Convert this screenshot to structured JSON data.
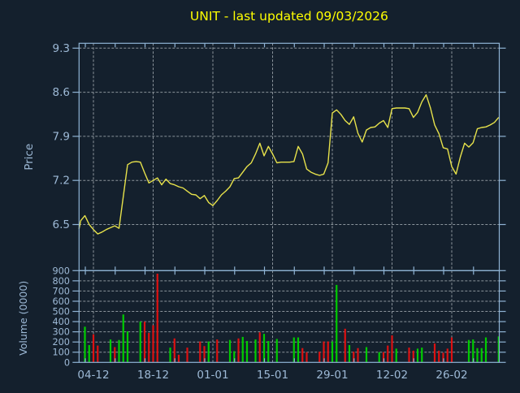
{
  "window": {
    "background": "#14202d"
  },
  "title": {
    "text": "UNIT - last updated 09/03/2026",
    "color": "#ffff00"
  },
  "axes": {
    "frame_color": "#8fb3d4",
    "grid_color": "#8b949c",
    "label_color": "#9db9d6",
    "price_axis_label": "Price",
    "volume_axis_label": "Volume (0000)",
    "x_tick_labels": [
      "04-12",
      "18-12",
      "01-01",
      "15-01",
      "29-01",
      "12-02",
      "26-02"
    ],
    "x_tick_days": [
      4,
      18,
      32,
      46,
      60,
      74,
      88
    ],
    "price_ticks": [
      9.3,
      8.6,
      7.9,
      7.2,
      6.5
    ],
    "volume_ticks": [
      900,
      800,
      700,
      600,
      500,
      400,
      300,
      200,
      100,
      0
    ]
  },
  "chart_data": [
    {
      "type": "line",
      "panel": "price",
      "title": "UNIT - last updated 09/03/2026",
      "ylabel": "Price",
      "ylim": [
        5.8,
        9.4
      ],
      "yticks": [
        6.5,
        7.2,
        7.9,
        8.6,
        9.3
      ],
      "xlabel": "",
      "xtick_labels": [
        "04-12",
        "18-12",
        "01-01",
        "15-01",
        "29-01",
        "12-02",
        "26-02"
      ],
      "grid": true,
      "line_color": "#e7e24b",
      "points": [
        [
          0,
          6.43
        ],
        [
          1,
          6.56
        ],
        [
          2,
          6.64
        ],
        [
          3,
          6.5
        ],
        [
          4,
          6.42
        ],
        [
          5,
          6.35
        ],
        [
          6,
          6.38
        ],
        [
          7,
          6.42
        ],
        [
          8,
          6.45
        ],
        [
          9,
          6.48
        ],
        [
          10,
          6.44
        ],
        [
          11,
          6.95
        ],
        [
          12,
          7.45
        ],
        [
          13,
          7.49
        ],
        [
          14,
          7.5
        ],
        [
          15,
          7.49
        ],
        [
          16,
          7.32
        ],
        [
          17,
          7.16
        ],
        [
          18,
          7.2
        ],
        [
          19,
          7.24
        ],
        [
          20,
          7.13
        ],
        [
          21,
          7.22
        ],
        [
          22,
          7.15
        ],
        [
          23,
          7.13
        ],
        [
          24,
          7.1
        ],
        [
          25,
          7.08
        ],
        [
          26,
          7.03
        ],
        [
          27,
          6.98
        ],
        [
          28,
          6.97
        ],
        [
          29,
          6.91
        ],
        [
          30,
          6.96
        ],
        [
          31,
          6.85
        ],
        [
          32,
          6.8
        ],
        [
          33,
          6.88
        ],
        [
          34,
          6.97
        ],
        [
          35,
          7.03
        ],
        [
          36,
          7.1
        ],
        [
          37,
          7.23
        ],
        [
          38,
          7.24
        ],
        [
          39,
          7.33
        ],
        [
          40,
          7.42
        ],
        [
          41,
          7.48
        ],
        [
          42,
          7.62
        ],
        [
          43,
          7.79
        ],
        [
          44,
          7.59
        ],
        [
          45,
          7.74
        ],
        [
          46,
          7.62
        ],
        [
          47,
          7.48
        ],
        [
          48,
          7.49
        ],
        [
          49,
          7.49
        ],
        [
          50,
          7.49
        ],
        [
          51,
          7.5
        ],
        [
          52,
          7.74
        ],
        [
          53,
          7.62
        ],
        [
          54,
          7.38
        ],
        [
          55,
          7.33
        ],
        [
          56,
          7.3
        ],
        [
          57,
          7.28
        ],
        [
          58,
          7.3
        ],
        [
          59,
          7.48
        ],
        [
          60,
          8.27
        ],
        [
          61,
          8.32
        ],
        [
          62,
          8.25
        ],
        [
          63,
          8.15
        ],
        [
          64,
          8.09
        ],
        [
          65,
          8.21
        ],
        [
          66,
          7.95
        ],
        [
          67,
          7.81
        ],
        [
          68,
          8.0
        ],
        [
          69,
          8.04
        ],
        [
          70,
          8.05
        ],
        [
          71,
          8.11
        ],
        [
          72,
          8.15
        ],
        [
          73,
          8.04
        ],
        [
          74,
          8.34
        ],
        [
          75,
          8.35
        ],
        [
          76,
          8.35
        ],
        [
          77,
          8.35
        ],
        [
          78,
          8.34
        ],
        [
          79,
          8.2
        ],
        [
          80,
          8.28
        ],
        [
          81,
          8.45
        ],
        [
          82,
          8.56
        ],
        [
          83,
          8.35
        ],
        [
          84,
          8.08
        ],
        [
          85,
          7.94
        ],
        [
          86,
          7.72
        ],
        [
          87,
          7.7
        ],
        [
          88,
          7.42
        ],
        [
          89,
          7.3
        ],
        [
          90,
          7.57
        ],
        [
          91,
          7.79
        ],
        [
          92,
          7.73
        ],
        [
          93,
          7.8
        ],
        [
          94,
          8.02
        ],
        [
          95,
          8.04
        ],
        [
          96,
          8.05
        ],
        [
          97,
          8.08
        ],
        [
          98,
          8.12
        ],
        [
          99,
          8.2
        ]
      ]
    },
    {
      "type": "bar",
      "panel": "volume",
      "ylabel": "Volume (0000)",
      "ylim": [
        0,
        900
      ],
      "yticks": [
        0,
        100,
        200,
        300,
        400,
        500,
        600,
        700,
        800,
        900
      ],
      "up_color": "#00cc00",
      "down_color": "#dd1111",
      "bars": [
        [
          2,
          350,
          "g"
        ],
        [
          3,
          170,
          "g"
        ],
        [
          4,
          275,
          "r"
        ],
        [
          5,
          165,
          "r"
        ],
        [
          8,
          225,
          "g"
        ],
        [
          9,
          150,
          "r"
        ],
        [
          10,
          220,
          "g"
        ],
        [
          11,
          470,
          "g"
        ],
        [
          12,
          305,
          "g"
        ],
        [
          15,
          400,
          "g"
        ],
        [
          16,
          400,
          "r"
        ],
        [
          17,
          290,
          "r"
        ],
        [
          18,
          365,
          "r"
        ],
        [
          19,
          870,
          "r"
        ],
        [
          22,
          145,
          "g"
        ],
        [
          23,
          235,
          "r"
        ],
        [
          24,
          75,
          "r"
        ],
        [
          26,
          145,
          "r"
        ],
        [
          29,
          205,
          "r"
        ],
        [
          30,
          160,
          "r"
        ],
        [
          31,
          205,
          "g"
        ],
        [
          33,
          225,
          "r"
        ],
        [
          36,
          220,
          "g"
        ],
        [
          37,
          110,
          "g"
        ],
        [
          38,
          235,
          "r"
        ],
        [
          39,
          250,
          "g"
        ],
        [
          40,
          210,
          "g"
        ],
        [
          42,
          225,
          "g"
        ],
        [
          43,
          295,
          "r"
        ],
        [
          44,
          280,
          "g"
        ],
        [
          45,
          210,
          "g"
        ],
        [
          47,
          230,
          "g"
        ],
        [
          51,
          245,
          "g"
        ],
        [
          52,
          245,
          "g"
        ],
        [
          53,
          140,
          "r"
        ],
        [
          54,
          100,
          "r"
        ],
        [
          57,
          105,
          "r"
        ],
        [
          58,
          205,
          "r"
        ],
        [
          59,
          205,
          "r"
        ],
        [
          60,
          205,
          "g"
        ],
        [
          61,
          760,
          "g"
        ],
        [
          63,
          330,
          "r"
        ],
        [
          64,
          170,
          "g"
        ],
        [
          65,
          105,
          "r"
        ],
        [
          66,
          140,
          "r"
        ],
        [
          68,
          150,
          "g"
        ],
        [
          71,
          100,
          "g"
        ],
        [
          72,
          100,
          "r"
        ],
        [
          73,
          165,
          "r"
        ],
        [
          74,
          265,
          "r"
        ],
        [
          75,
          135,
          "g"
        ],
        [
          78,
          145,
          "r"
        ],
        [
          79,
          115,
          "r"
        ],
        [
          80,
          135,
          "g"
        ],
        [
          81,
          145,
          "g"
        ],
        [
          84,
          185,
          "r"
        ],
        [
          85,
          115,
          "r"
        ],
        [
          86,
          95,
          "r"
        ],
        [
          87,
          135,
          "r"
        ],
        [
          88,
          245,
          "r"
        ],
        [
          92,
          220,
          "g"
        ],
        [
          93,
          225,
          "g"
        ],
        [
          94,
          140,
          "g"
        ],
        [
          95,
          140,
          "g"
        ],
        [
          96,
          245,
          "g"
        ],
        [
          99,
          255,
          "g"
        ]
      ]
    }
  ]
}
